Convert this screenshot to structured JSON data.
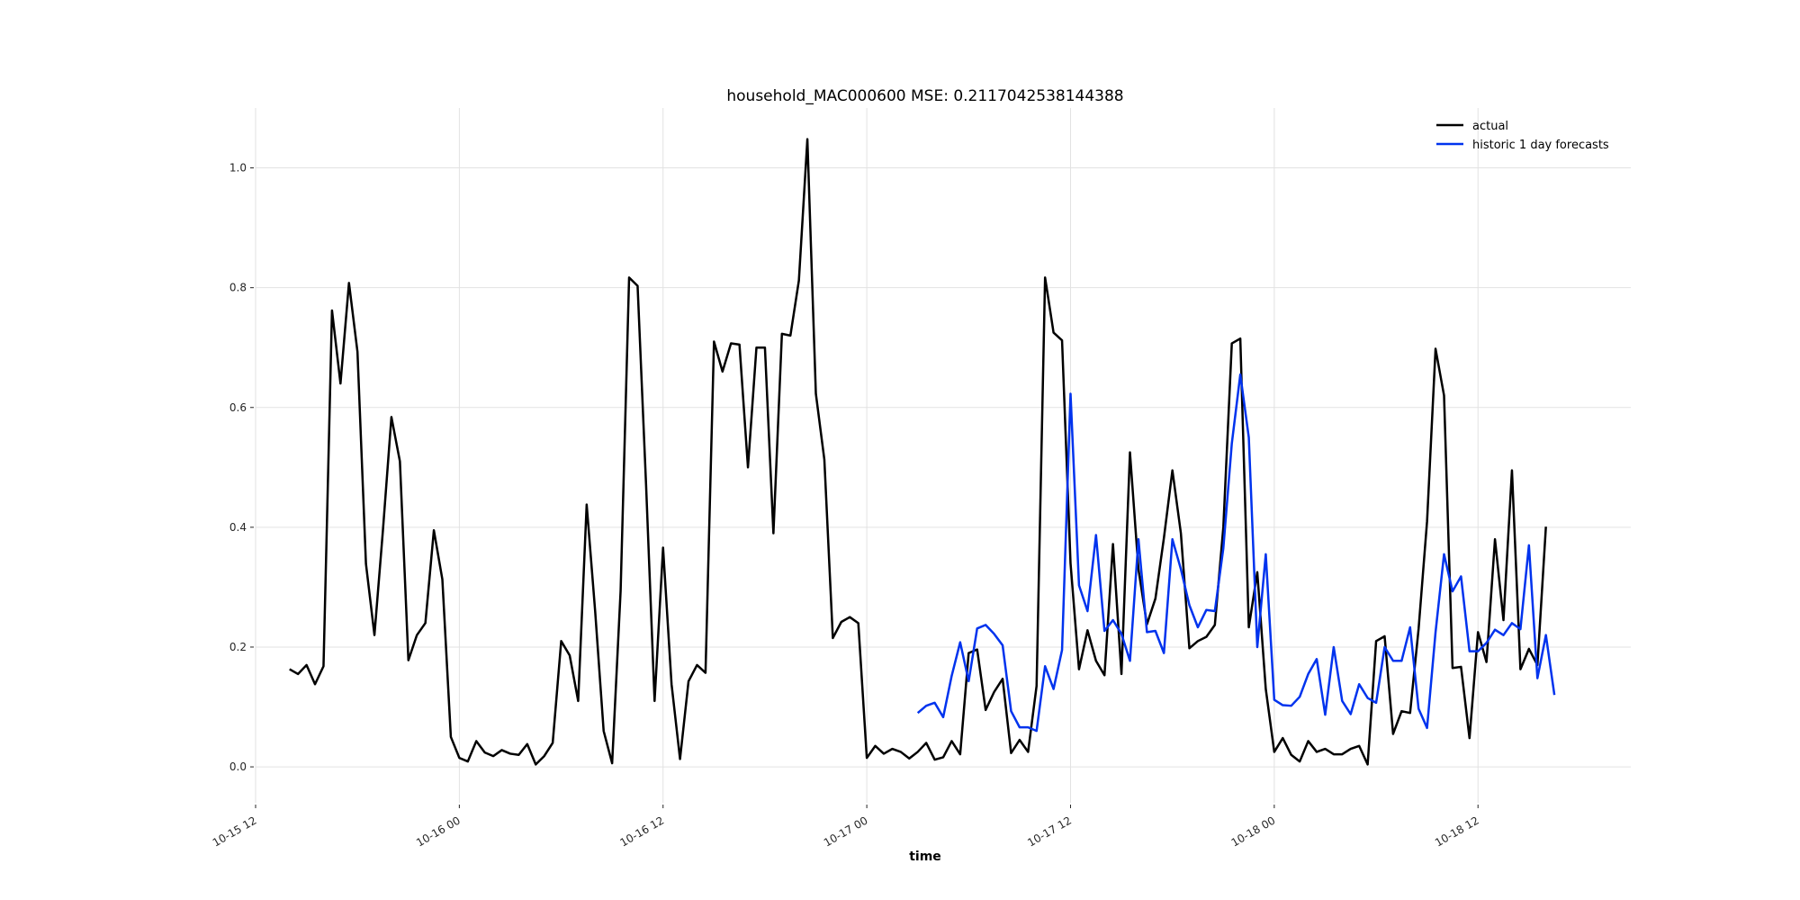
{
  "chart_data": {
    "type": "line",
    "title": "household_MAC000600 MSE: 0.2117042538144388",
    "xlabel": "time",
    "ylabel": "",
    "x_start": "2013-10-15 16:00",
    "step_minutes": 60,
    "xlim": [
      "2013-10-15 12:00",
      "2013-10-18 21:00"
    ],
    "ylim": [
      -0.06,
      1.1
    ],
    "grid": true,
    "legend_position": "top-right",
    "xticks": [
      {
        "t": "2013-10-15 12:00",
        "label": "10-15 12"
      },
      {
        "t": "2013-10-16 00:00",
        "label": "10-16 00"
      },
      {
        "t": "2013-10-16 12:00",
        "label": "10-16 12"
      },
      {
        "t": "2013-10-17 00:00",
        "label": "10-17 00"
      },
      {
        "t": "2013-10-17 12:00",
        "label": "10-17 12"
      },
      {
        "t": "2013-10-18 00:00",
        "label": "10-18 00"
      },
      {
        "t": "2013-10-18 12:00",
        "label": "10-18 12"
      }
    ],
    "yticks": [
      {
        "v": 0.0,
        "label": "0.0"
      },
      {
        "v": 0.2,
        "label": "0.2"
      },
      {
        "v": 0.4,
        "label": "0.4"
      },
      {
        "v": 0.6,
        "label": "0.6"
      },
      {
        "v": 0.8,
        "label": "0.8"
      },
      {
        "v": 1.0,
        "label": "1.0"
      }
    ],
    "series": [
      {
        "name": "actual",
        "color": "#000000",
        "start": "2013-10-15 14:00",
        "step_minutes": 30,
        "values": [
          0.163,
          0.155,
          0.17,
          0.138,
          0.168,
          0.762,
          0.64,
          0.808,
          0.693,
          0.339,
          0.22,
          0.395,
          0.584,
          0.51,
          0.178,
          0.22,
          0.24,
          0.395,
          0.313,
          0.05,
          0.015,
          0.009,
          0.043,
          0.024,
          0.018,
          0.028,
          0.022,
          0.02,
          0.038,
          0.004,
          0.018,
          0.04,
          0.21,
          0.186,
          0.11,
          0.438,
          0.26,
          0.06,
          0.006,
          0.294,
          0.817,
          0.803,
          0.47,
          0.11,
          0.366,
          0.138,
          0.013,
          0.143,
          0.17,
          0.157,
          0.71,
          0.66,
          0.707,
          0.705,
          0.5,
          0.7,
          0.7,
          0.39,
          0.723,
          0.72,
          0.812,
          1.048,
          0.623,
          0.513,
          0.215,
          0.242,
          0.25,
          0.24,
          0.015,
          0.035,
          0.022,
          0.03,
          0.025,
          0.014,
          0.025,
          0.04,
          0.012,
          0.016,
          0.043,
          0.021,
          0.19,
          0.196,
          0.095,
          0.125,
          0.147,
          0.023,
          0.045,
          0.025,
          0.135,
          0.817,
          0.725,
          0.712,
          0.34,
          0.163,
          0.228,
          0.177,
          0.153,
          0.372,
          0.155,
          0.525,
          0.33,
          0.238,
          0.281,
          0.382,
          0.495,
          0.39,
          0.198,
          0.21,
          0.217,
          0.237,
          0.4,
          0.707,
          0.715,
          0.233,
          0.325,
          0.13,
          0.025,
          0.048,
          0.02,
          0.009,
          0.043,
          0.025,
          0.03,
          0.021,
          0.021,
          0.03,
          0.035,
          0.004,
          0.21,
          0.218,
          0.055,
          0.093,
          0.09,
          0.23,
          0.41,
          0.698,
          0.62,
          0.165,
          0.167,
          0.048,
          0.225,
          0.175,
          0.38,
          0.245,
          0.495,
          0.163,
          0.197,
          0.17,
          0.401
        ]
      },
      {
        "name": "historic 1 day forecasts",
        "color": "#0033ee",
        "start": "2013-10-17 03:00",
        "step_minutes": 30,
        "values": [
          0.09,
          0.102,
          0.107,
          0.083,
          0.152,
          0.208,
          0.143,
          0.231,
          0.237,
          0.222,
          0.203,
          0.093,
          0.066,
          0.066,
          0.06,
          0.168,
          0.13,
          0.195,
          0.623,
          0.303,
          0.26,
          0.387,
          0.227,
          0.245,
          0.222,
          0.177,
          0.38,
          0.225,
          0.227,
          0.19,
          0.38,
          0.33,
          0.27,
          0.233,
          0.262,
          0.26,
          0.365,
          0.54,
          0.655,
          0.55,
          0.2,
          0.355,
          0.112,
          0.103,
          0.102,
          0.117,
          0.155,
          0.18,
          0.087,
          0.2,
          0.11,
          0.088,
          0.138,
          0.115,
          0.107,
          0.2,
          0.177,
          0.177,
          0.233,
          0.097,
          0.065,
          0.225,
          0.355,
          0.293,
          0.318,
          0.193,
          0.193,
          0.207,
          0.229,
          0.22,
          0.24,
          0.23,
          0.37,
          0.148,
          0.22,
          0.12
        ]
      }
    ]
  }
}
